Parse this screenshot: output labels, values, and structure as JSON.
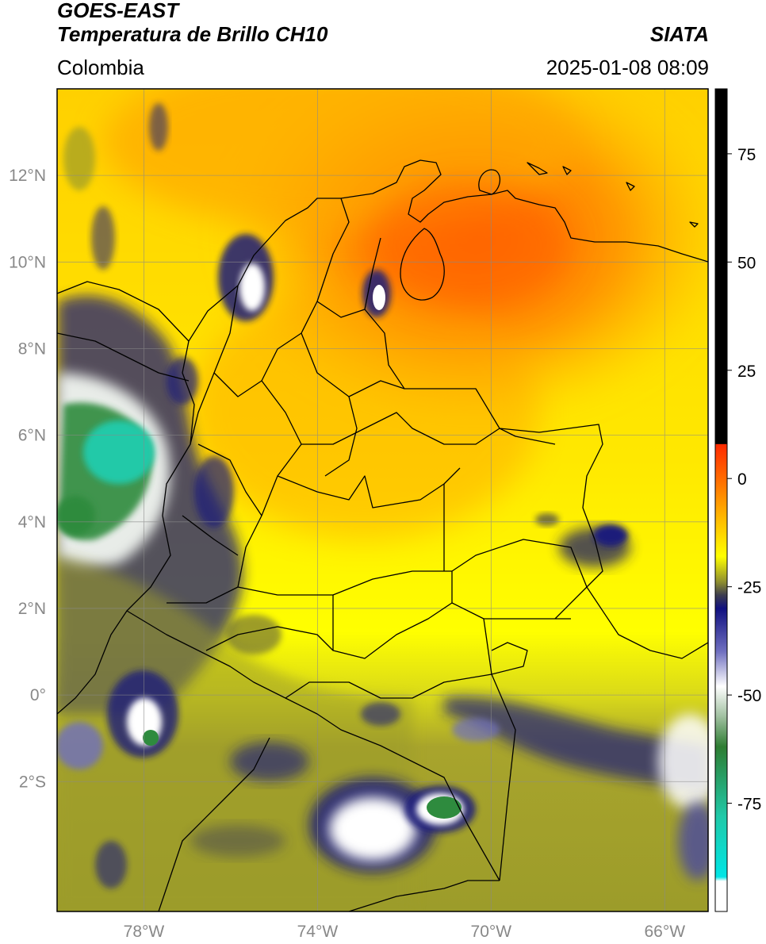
{
  "header": {
    "satellite": "GOES-EAST",
    "product": "Temperatura de Brillo CH10",
    "region": "Colombia",
    "organization": "SIATA",
    "datetime": "2025-01-08 08:09"
  },
  "map": {
    "lon_range": [
      -80,
      -65
    ],
    "lat_range": [
      -5,
      14
    ],
    "lat_ticks": [
      {
        "v": 12,
        "label": "12°N"
      },
      {
        "v": 10,
        "label": "10°N"
      },
      {
        "v": 8,
        "label": "8°N"
      },
      {
        "v": 6,
        "label": "6°N"
      },
      {
        "v": 4,
        "label": "4°N"
      },
      {
        "v": 2,
        "label": "2°N"
      },
      {
        "v": 0,
        "label": "0°"
      },
      {
        "v": -2,
        "label": "2°S"
      }
    ],
    "lon_ticks": [
      {
        "v": -78,
        "label": "78°W"
      },
      {
        "v": -74,
        "label": "74°W"
      },
      {
        "v": -70,
        "label": "70°W"
      },
      {
        "v": -66,
        "label": "66°W"
      }
    ],
    "grid": true,
    "colors": {
      "warm": "#ff7a00",
      "mid": "#ffb300",
      "yellow": "#ffff00",
      "olive": "#9c9c2a",
      "navy": "#1a1a7a",
      "white": "#ffffff",
      "green": "#2e8b3e",
      "teal": "#20c9a8"
    }
  },
  "colorbar": {
    "range": [
      -100,
      90
    ],
    "ticks": [
      {
        "v": 75,
        "label": "75"
      },
      {
        "v": 50,
        "label": "50"
      },
      {
        "v": 25,
        "label": "25"
      },
      {
        "v": 0,
        "label": "0"
      },
      {
        "v": -25,
        "label": "-25"
      },
      {
        "v": -50,
        "label": "-50"
      },
      {
        "v": -75,
        "label": "-75"
      }
    ],
    "stops": [
      {
        "v": 90,
        "color": "#000000"
      },
      {
        "v": 8,
        "color": "#000000"
      },
      {
        "v": 7.9,
        "color": "#ff2a00"
      },
      {
        "v": 0,
        "color": "#ff6a00"
      },
      {
        "v": -10,
        "color": "#ffc000"
      },
      {
        "v": -18,
        "color": "#ffff00"
      },
      {
        "v": -24,
        "color": "#8c8c30"
      },
      {
        "v": -27,
        "color": "#3c3c50"
      },
      {
        "v": -30,
        "color": "#101080"
      },
      {
        "v": -40,
        "color": "#7070c0"
      },
      {
        "v": -48,
        "color": "#ffffff"
      },
      {
        "v": -55,
        "color": "#a0c0a0"
      },
      {
        "v": -62,
        "color": "#2e7d32"
      },
      {
        "v": -78,
        "color": "#20c9a8"
      },
      {
        "v": -92,
        "color": "#00e5e5"
      },
      {
        "v": -93,
        "color": "#ffffff"
      },
      {
        "v": -100,
        "color": "#ffffff"
      }
    ]
  }
}
